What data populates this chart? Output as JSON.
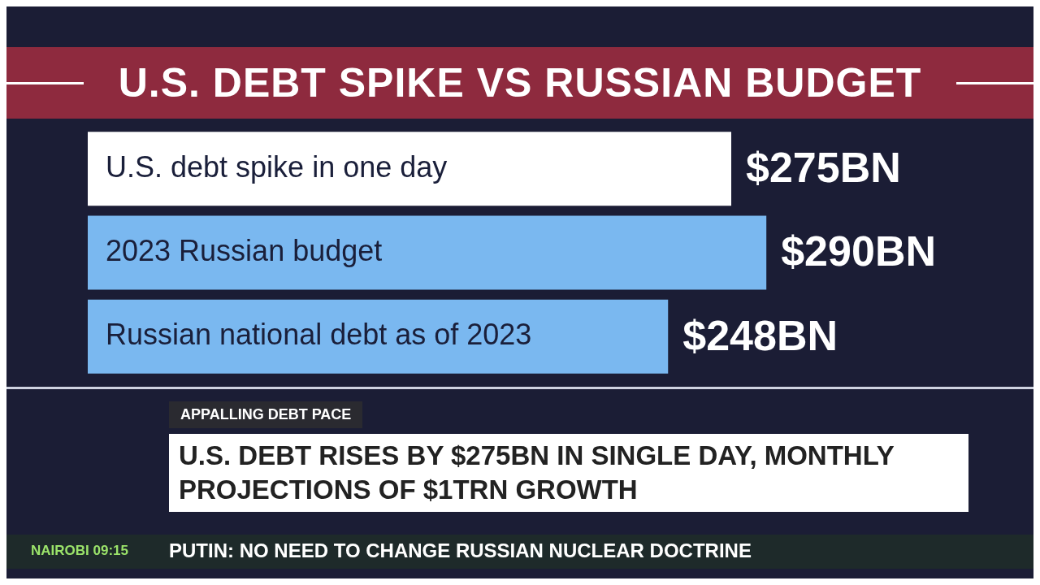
{
  "chart_data": {
    "type": "bar",
    "orientation": "horizontal",
    "title": "U.S. DEBT SPIKE VS RUSSIAN BUDGET",
    "categories": [
      "U.S. debt spike in one day",
      "2023 Russian budget",
      "Russian national debt as of 2023"
    ],
    "values": [
      275,
      290,
      248
    ],
    "colors": [
      "#ffffff",
      "#7ab8f0",
      "#7ab8f0"
    ],
    "value_labels": [
      "$275BN",
      "$290BN",
      "$248BN"
    ],
    "annotations": [
      "APPALLING DEBT PACE",
      "U.S. DEBT RISES BY $275BN IN SINGLE DAY, MONTHLY PROJECTIONS OF $1TRN GROWTH",
      "NAIROBI 09:15",
      "PUTIN: NO NEED TO CHANGE RUSSIAN NUCLEAR DOCTRINE"
    ]
  }
}
